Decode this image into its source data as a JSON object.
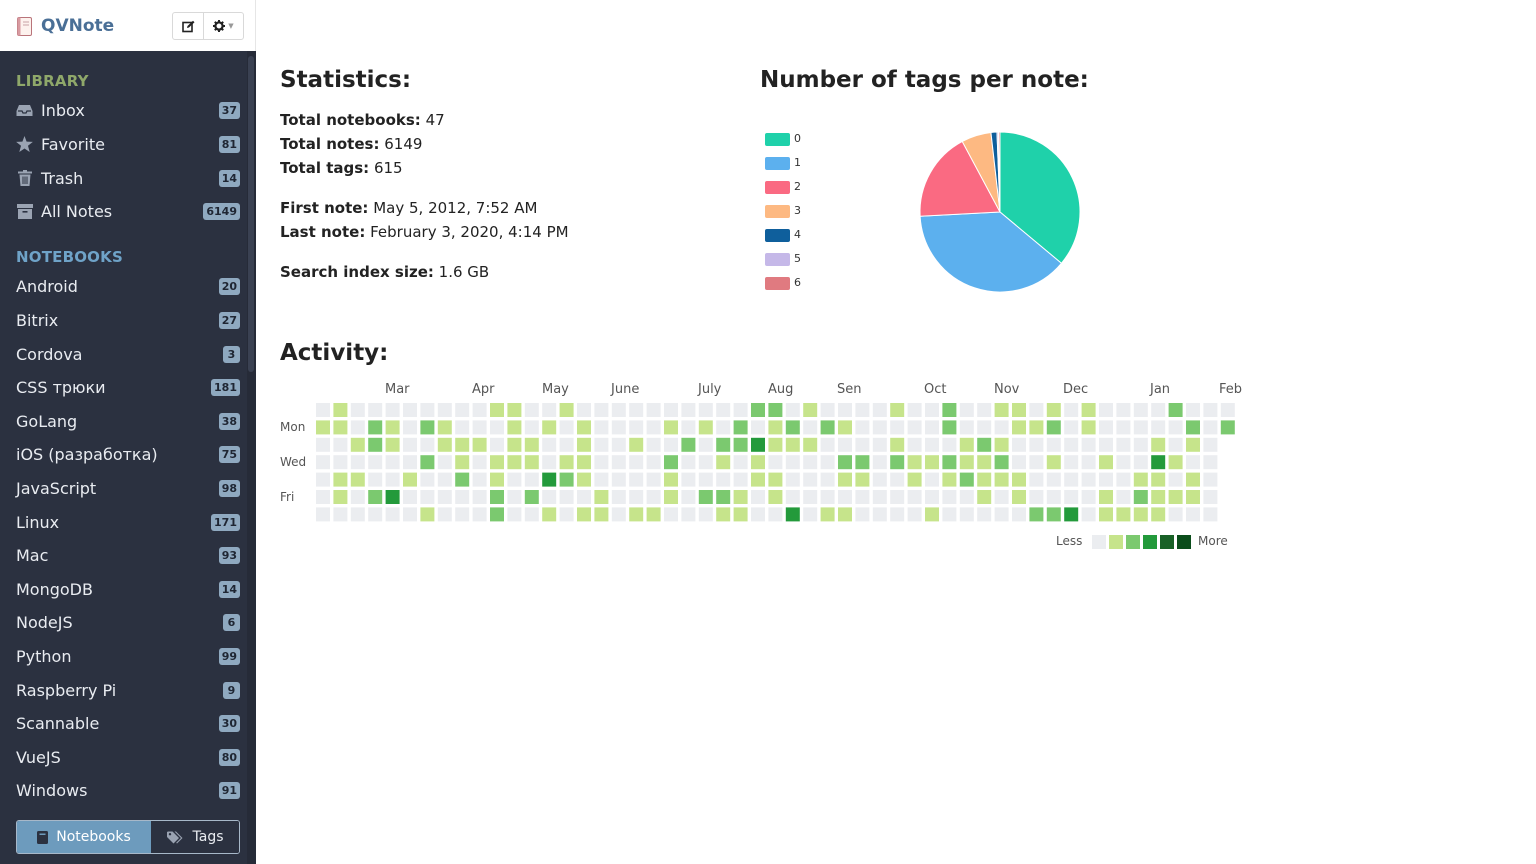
{
  "app": {
    "title": "QVNote"
  },
  "toolbar": {
    "new_note_icon": "edit-icon",
    "settings_icon": "gear-icon"
  },
  "sidebar": {
    "library_title": "LIBRARY",
    "library": [
      {
        "label": "Inbox",
        "count": "37",
        "icon": "inbox-icon"
      },
      {
        "label": "Favorite",
        "count": "81",
        "icon": "star-icon"
      },
      {
        "label": "Trash",
        "count": "14",
        "icon": "trash-icon"
      },
      {
        "label": "All Notes",
        "count": "6149",
        "icon": "archive-icon"
      }
    ],
    "notebooks_title": "NOTEBOOKS",
    "notebooks": [
      {
        "label": "Android",
        "count": "20"
      },
      {
        "label": "Bitrix",
        "count": "27"
      },
      {
        "label": "Cordova",
        "count": "3"
      },
      {
        "label": "CSS трюки",
        "count": "181"
      },
      {
        "label": "GoLang",
        "count": "38"
      },
      {
        "label": "iOS (разработка)",
        "count": "75"
      },
      {
        "label": "JavaScript",
        "count": "98"
      },
      {
        "label": "Linux",
        "count": "171"
      },
      {
        "label": "Mac",
        "count": "93"
      },
      {
        "label": "MongoDB",
        "count": "14"
      },
      {
        "label": "NodeJS",
        "count": "6"
      },
      {
        "label": "Python",
        "count": "99"
      },
      {
        "label": "Raspberry Pi",
        "count": "9"
      },
      {
        "label": "Scannable",
        "count": "30"
      },
      {
        "label": "VueJS",
        "count": "80"
      },
      {
        "label": "Windows",
        "count": "91"
      }
    ],
    "switcher": {
      "notebooks_label": "Notebooks",
      "tags_label": "Tags",
      "active": "Notebooks"
    }
  },
  "stats": {
    "title": "Statistics:",
    "total_notebooks_label": "Total notebooks:",
    "total_notebooks": "47",
    "total_notes_label": "Total notes:",
    "total_notes": "6149",
    "total_tags_label": "Total tags:",
    "total_tags": "615",
    "first_note_label": "First note:",
    "first_note": "May 5, 2012, 7:52 AM",
    "last_note_label": "Last note:",
    "last_note": "February 3, 2020, 4:14 PM",
    "index_size_label": "Search index size:",
    "index_size": "1.6 GB"
  },
  "tags_chart_title": "Number of tags per note:",
  "activity": {
    "title": "Activity:",
    "months": [
      "Mar",
      "Apr",
      "May",
      "June",
      "July",
      "Aug",
      "Sen",
      "Oct",
      "Nov",
      "Dec",
      "Jan",
      "Feb"
    ],
    "day_labels": [
      "Mon",
      "Wed",
      "Fri"
    ],
    "legend_less": "Less",
    "legend_more": "More",
    "scale_colors": [
      "#ebedf0",
      "#c6e48b",
      "#7bc96f",
      "#239a3b",
      "#196127",
      "#0b4d1b"
    ]
  },
  "chart_data": {
    "type": "pie",
    "title": "Number of tags per note:",
    "categories": [
      "0",
      "1",
      "2",
      "3",
      "4",
      "5",
      "6"
    ],
    "values": [
      36,
      38,
      18,
      6,
      1.2,
      0.3,
      0.3
    ],
    "colors": [
      "#1fd1aa",
      "#5cb0ee",
      "#fa6a82",
      "#fdb982",
      "#0f5f9c",
      "#c5b8e8",
      "#e07a80"
    ],
    "legend": "left"
  }
}
